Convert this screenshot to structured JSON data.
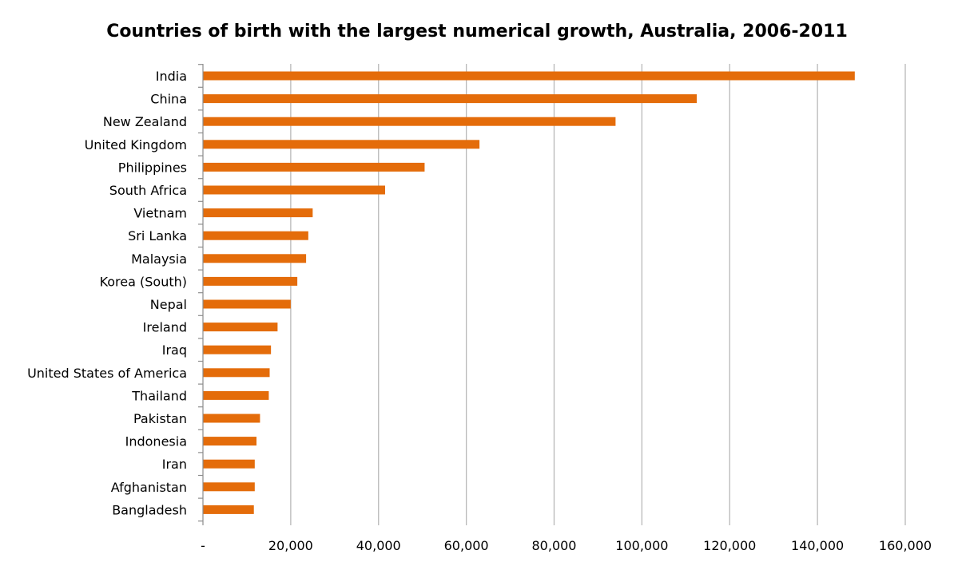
{
  "chart_data": {
    "type": "bar",
    "orientation": "horizontal",
    "title": "Countries of birth with the largest numerical growth, Australia, 2006-2011",
    "xlabel": "",
    "ylabel": "",
    "categories": [
      "India",
      "China",
      "New Zealand",
      "United Kingdom",
      "Philippines",
      "South Africa",
      "Vietnam",
      "Sri Lanka",
      "Malaysia",
      "Korea (South)",
      "Nepal",
      "Ireland",
      "Iraq",
      "United States of America",
      "Thailand",
      "Pakistan",
      "Indonesia",
      "Iran",
      "Afghanistan",
      "Bangladesh"
    ],
    "values": [
      148500,
      112500,
      94000,
      63000,
      50500,
      41500,
      25000,
      24000,
      23500,
      21500,
      20000,
      17000,
      15500,
      15200,
      15000,
      13000,
      12200,
      11800,
      11800,
      11600
    ],
    "xlim": [
      0,
      160000
    ],
    "x_ticks": [
      0,
      20000,
      40000,
      60000,
      80000,
      100000,
      120000,
      140000,
      160000
    ],
    "x_tick_labels": [
      "-",
      "20,000",
      "40,000",
      "60,000",
      "80,000",
      "100,000",
      "120,000",
      "140,000",
      "160,000"
    ],
    "grid": true,
    "legend": "none",
    "bar_color": "#E46C0A"
  }
}
